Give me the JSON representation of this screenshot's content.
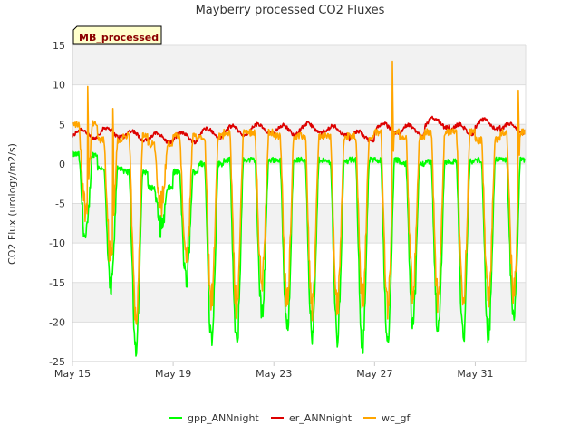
{
  "chart_data": {
    "type": "line",
    "title": "Mayberry processed CO2 Fluxes",
    "xlabel": "",
    "ylabel": "CO2 Flux (urology/m2/s)",
    "badge": "MB_processed",
    "ylim": [
      -25,
      15
    ],
    "xlim": [
      "2016-05-15",
      "2016-06-02"
    ],
    "y_ticks": [
      15,
      10,
      5,
      0,
      -5,
      -10,
      -15,
      -20,
      -25
    ],
    "x_ticks": [
      {
        "label": "May 15",
        "day": 0
      },
      {
        "label": "May 19",
        "day": 4
      },
      {
        "label": "May 23",
        "day": 8
      },
      {
        "label": "May 27",
        "day": 12
      },
      {
        "label": "May 31",
        "day": 16
      }
    ],
    "grid": true,
    "legend_position": "bottom",
    "daily_extremes": {
      "gpp_ANNnight": {
        "day_min": [
          -9.5,
          -16,
          -23,
          -8,
          -15,
          -22,
          -23,
          -19,
          -21,
          -22,
          -22,
          -23,
          -23,
          -20,
          -21,
          -22,
          -22,
          -20
        ],
        "night": [
          1.2,
          -0.5,
          -1,
          -3,
          -1,
          0,
          0.5,
          0.5,
          0.5,
          0.5,
          0.3,
          0.5,
          0.5,
          0,
          0.3,
          0.3,
          0.5,
          0.5
        ]
      },
      "er_ANNnight": {
        "night": [
          3.8,
          4.0,
          3.6,
          3.3,
          3.4,
          3.9,
          4.2,
          4.4,
          4.3,
          4.5,
          4.2,
          3.5,
          4.5,
          4.3,
          5.2,
          4.4,
          5.0,
          4.5
        ]
      },
      "wc_gf": {
        "day_min": [
          -5.5,
          -12,
          -19,
          -5,
          -12,
          -17,
          -18,
          -15,
          -17,
          -18,
          -18,
          -17,
          -18,
          -16,
          -17,
          -17,
          -17,
          -16
        ],
        "night": [
          5.0,
          3.0,
          3.5,
          2.5,
          3.5,
          3.5,
          4.0,
          4.0,
          3.5,
          3.5,
          3.5,
          3.5,
          4.0,
          3.5,
          4.0,
          4.0,
          3.0,
          4.0
        ],
        "spikes": [
          {
            "day": 0.6,
            "value": 9.8
          },
          {
            "day": 1.6,
            "value": 7.0
          },
          {
            "day": 12.7,
            "value": 13
          },
          {
            "day": 17.7,
            "value": 9.3
          }
        ]
      }
    },
    "series": [
      {
        "name": "gpp_ANNnight",
        "color": "#00ff00"
      },
      {
        "name": "er_ANNnight",
        "color": "#dd0000"
      },
      {
        "name": "wc_gf",
        "color": "#ffa500"
      }
    ]
  }
}
